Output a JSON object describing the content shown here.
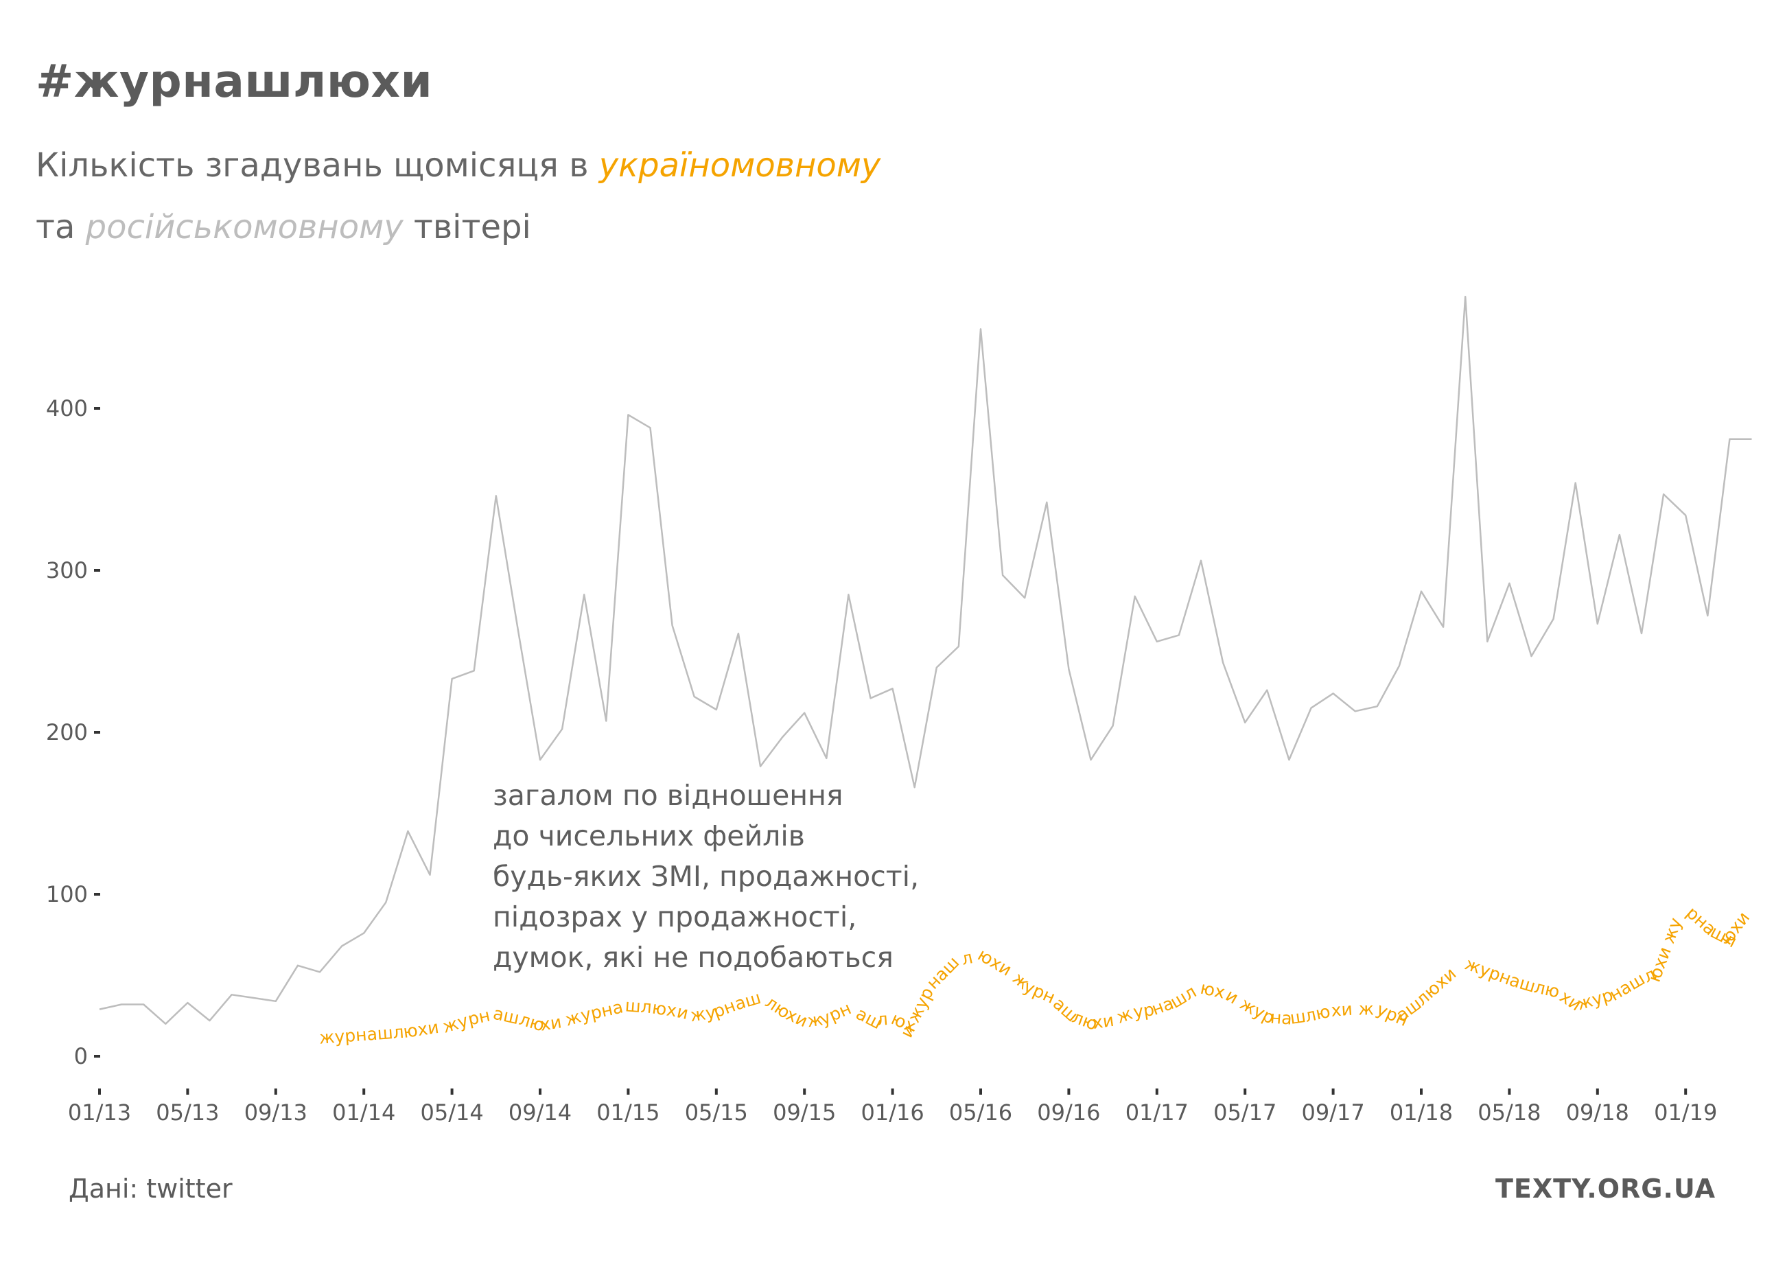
{
  "header": {
    "title": "#журнашлюхи",
    "subtitle_part1": "Кількість згадувань щомісяця в ",
    "subtitle_uk": "україномовному",
    "subtitle_part2": "та ",
    "subtitle_ru": "російськомовному",
    "subtitle_part3": " твітері"
  },
  "annotation": [
    "загалом по відношення",
    "до чисельних фейлів",
    "будь-яких ЗМІ, продажності,",
    "підозрах у продажності,",
    "думок, які не подобаються"
  ],
  "footer": {
    "source": "Дані: twitter",
    "brand": "TEXTY.ORG.UA"
  },
  "colors": {
    "ukrainian": "#f5a300",
    "russian": "#bdbdbd",
    "text": "#5a5a5a"
  },
  "chart_data": {
    "type": "line",
    "title": "#журнашлюхи",
    "xlabel": "",
    "ylabel": "",
    "ylim": [
      0,
      470
    ],
    "y_ticks": [
      0,
      100,
      200,
      300,
      400
    ],
    "x_start": "2013-01",
    "x_end": "2019-04",
    "x_tick_labels": [
      "01/13",
      "05/13",
      "09/13",
      "01/14",
      "05/14",
      "09/14",
      "01/15",
      "05/15",
      "09/15",
      "01/16",
      "05/16",
      "09/16",
      "01/17",
      "05/17",
      "09/17",
      "01/18",
      "05/18",
      "09/18",
      "01/19"
    ],
    "grid": false,
    "legend": "none",
    "series": [
      {
        "name": "російськомовному",
        "color": "#bdbdbd",
        "x": [
          "2013-01",
          "2013-02",
          "2013-03",
          "2013-04",
          "2013-05",
          "2013-06",
          "2013-07",
          "2013-08",
          "2013-09",
          "2013-10",
          "2013-11",
          "2013-12",
          "2014-01",
          "2014-02",
          "2014-03",
          "2014-04",
          "2014-05",
          "2014-06",
          "2014-07",
          "2014-08",
          "2014-09",
          "2014-10",
          "2014-11",
          "2014-12",
          "2015-01",
          "2015-02",
          "2015-03",
          "2015-04",
          "2015-05",
          "2015-06",
          "2015-07",
          "2015-08",
          "2015-09",
          "2015-10",
          "2015-11",
          "2015-12",
          "2016-01",
          "2016-02",
          "2016-03",
          "2016-04",
          "2016-05",
          "2016-06",
          "2016-07",
          "2016-08",
          "2016-09",
          "2016-10",
          "2016-11",
          "2016-12",
          "2017-01",
          "2017-02",
          "2017-03",
          "2017-04",
          "2017-05",
          "2017-06",
          "2017-07",
          "2017-08",
          "2017-09",
          "2017-10",
          "2017-11",
          "2017-12",
          "2018-01",
          "2018-02",
          "2018-03",
          "2018-04",
          "2018-05",
          "2018-06",
          "2018-07",
          "2018-08",
          "2018-09",
          "2018-10",
          "2018-11",
          "2018-12",
          "2019-01",
          "2019-02",
          "2019-03",
          "2019-04"
        ],
        "values": [
          29,
          32,
          32,
          20,
          33,
          22,
          38,
          36,
          34,
          56,
          52,
          68,
          76,
          95,
          139,
          112,
          233,
          238,
          346,
          263,
          183,
          202,
          285,
          207,
          396,
          388,
          266,
          222,
          214,
          261,
          179,
          197,
          212,
          184,
          285,
          221,
          227,
          166,
          240,
          253,
          449,
          297,
          283,
          342,
          239,
          183,
          204,
          284,
          256,
          260,
          306,
          243,
          206,
          226,
          183,
          215,
          224,
          213,
          216,
          241,
          287,
          265,
          469,
          256,
          292,
          247,
          270,
          354,
          267,
          322,
          261,
          347,
          334,
          272,
          381,
          381
        ]
      },
      {
        "name": "україномовному",
        "color": "#f5a300",
        "text": "журнашлюхи",
        "x": [
          "2013-11",
          "2013-12",
          "2014-01",
          "2014-02",
          "2014-03",
          "2014-04",
          "2014-05",
          "2014-06",
          "2014-07",
          "2014-08",
          "2014-09",
          "2014-10",
          "2014-11",
          "2014-12",
          "2015-01",
          "2015-02",
          "2015-03",
          "2015-04",
          "2015-05",
          "2015-06",
          "2015-07",
          "2015-08",
          "2015-09",
          "2015-10",
          "2015-11",
          "2015-12",
          "2016-01",
          "2016-02",
          "2016-03",
          "2016-04",
          "2016-05",
          "2016-06",
          "2016-07",
          "2016-08",
          "2016-09",
          "2016-10",
          "2016-11",
          "2016-12",
          "2017-01",
          "2017-02",
          "2017-03",
          "2017-04",
          "2017-05",
          "2017-06",
          "2017-07",
          "2017-08",
          "2017-09",
          "2017-10",
          "2017-11",
          "2017-12",
          "2018-01",
          "2018-02",
          "2018-03",
          "2018-04",
          "2018-05",
          "2018-06",
          "2018-07",
          "2018-08",
          "2018-09",
          "2018-10",
          "2018-11",
          "2018-12",
          "2019-01",
          "2019-02",
          "2019-03",
          "2019-04"
        ],
        "values": [
          6,
          7,
          8,
          9,
          10,
          12,
          14,
          18,
          21,
          18,
          14,
          16,
          20,
          23,
          26,
          25,
          23,
          20,
          22,
          27,
          31,
          22,
          16,
          18,
          24,
          17,
          18,
          12,
          40,
          54,
          57,
          49,
          38,
          32,
          20,
          15,
          17,
          22,
          24,
          29,
          37,
          34,
          26,
          19,
          18,
          20,
          23,
          24,
          24,
          18,
          28,
          40,
          52,
          47,
          42,
          38,
          35,
          26,
          30,
          34,
          42,
          48,
          85,
          73,
          66,
          84
        ]
      }
    ]
  }
}
